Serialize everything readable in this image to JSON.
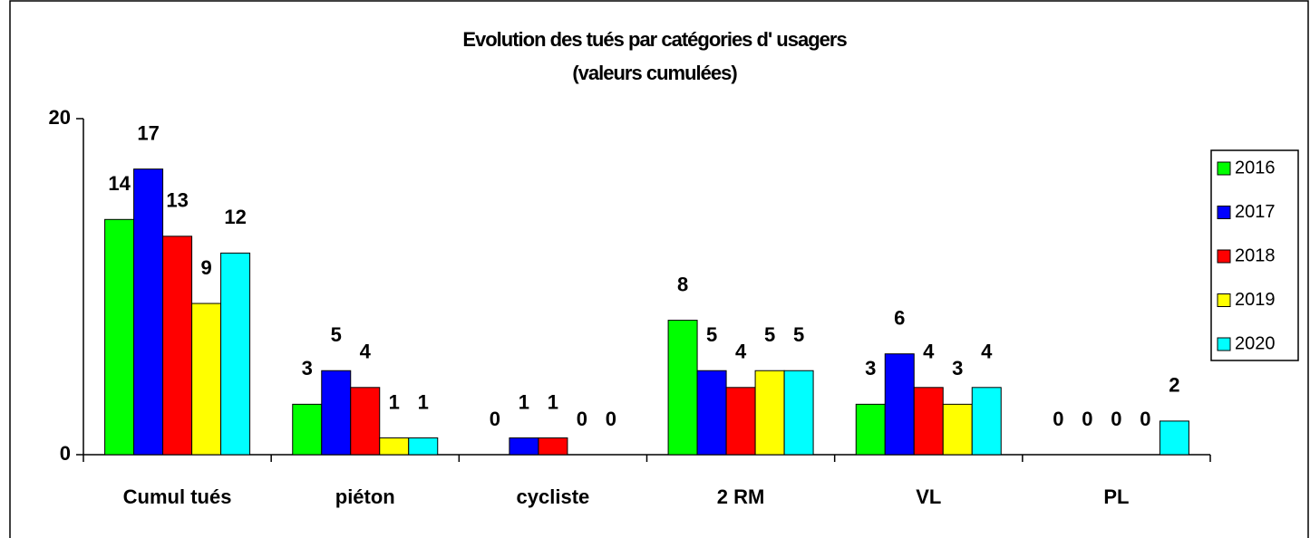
{
  "chart_data": {
    "type": "bar",
    "title": "Evolution des tués par catégories d' usagers",
    "subtitle": "(valeurs cumulées)",
    "categories": [
      "Cumul tués",
      "piéton",
      "cycliste",
      "2 RM",
      "VL",
      "PL"
    ],
    "series": [
      {
        "name": "2016",
        "color": "#00ff00",
        "values": [
          14,
          3,
          0,
          8,
          3,
          0
        ]
      },
      {
        "name": "2017",
        "color": "#0000ff",
        "values": [
          17,
          5,
          1,
          5,
          6,
          0
        ]
      },
      {
        "name": "2018",
        "color": "#ff0000",
        "values": [
          13,
          4,
          1,
          4,
          4,
          0
        ]
      },
      {
        "name": "2019",
        "color": "#ffff00",
        "values": [
          9,
          1,
          0,
          5,
          3,
          0
        ]
      },
      {
        "name": "2020",
        "color": "#00ffff",
        "values": [
          12,
          1,
          0,
          5,
          4,
          2
        ]
      }
    ],
    "ylim": [
      0,
      20
    ],
    "yticks": [
      0,
      20
    ],
    "grid": false,
    "legend": "right"
  }
}
